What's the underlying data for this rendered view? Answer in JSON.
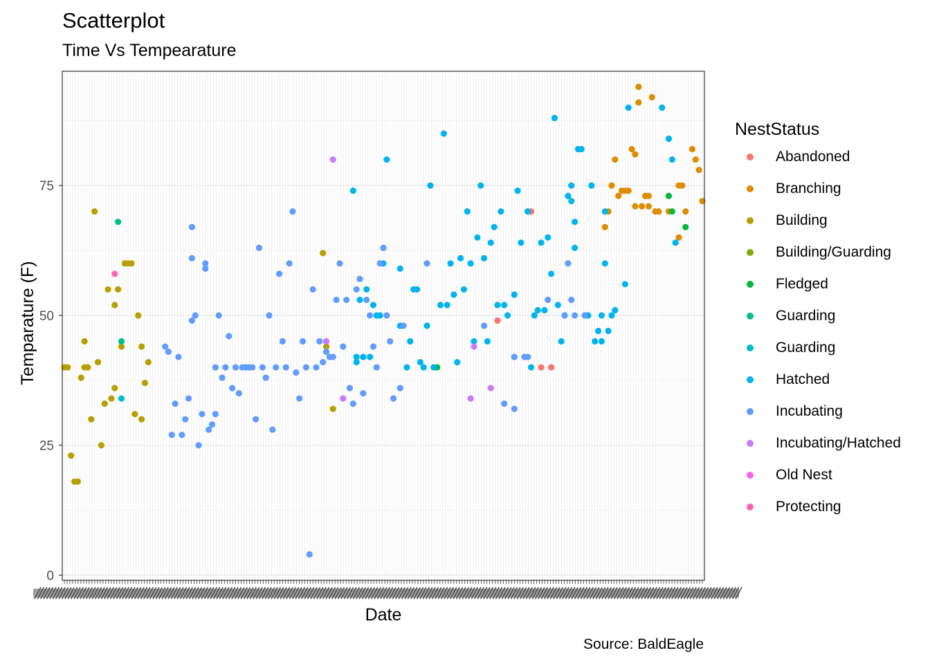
{
  "chart_data": {
    "type": "scatter",
    "title": "Scatterplot",
    "subtitle": "Time Vs Tempearature",
    "caption": "Source: BaldEagle",
    "xlabel": "Date",
    "ylabel": "Temparature (F)",
    "ylim": [
      -1,
      97
    ],
    "y_ticks": [
      0,
      25,
      50,
      75
    ],
    "grid": true,
    "legend": {
      "title": "NestStatus",
      "position": "right"
    },
    "series": [
      {
        "name": "Abandoned",
        "color": "#F8766D",
        "points": [
          [
            129,
            49
          ],
          [
            138,
            70
          ],
          [
            139,
            70
          ],
          [
            142,
            40
          ],
          [
            145,
            40
          ]
        ]
      },
      {
        "name": "Branching",
        "color": "#DE8C00",
        "points": [
          [
            161,
            67
          ],
          [
            162,
            70
          ],
          [
            163,
            75
          ],
          [
            164,
            80
          ],
          [
            165,
            73
          ],
          [
            166,
            74
          ],
          [
            167,
            74
          ],
          [
            168,
            74
          ],
          [
            169,
            82
          ],
          [
            170,
            81
          ],
          [
            170,
            71
          ],
          [
            171,
            94
          ],
          [
            171,
            91
          ],
          [
            172,
            71
          ],
          [
            173,
            73
          ],
          [
            174,
            73
          ],
          [
            174,
            71
          ],
          [
            175,
            92
          ],
          [
            176,
            70
          ],
          [
            177,
            70
          ],
          [
            180,
            70
          ],
          [
            183,
            65
          ],
          [
            183,
            75
          ],
          [
            184,
            75
          ],
          [
            185,
            70
          ],
          [
            187,
            82
          ],
          [
            188,
            80
          ],
          [
            189,
            78
          ],
          [
            190,
            72
          ]
        ]
      },
      {
        "name": "Building",
        "color": "#B79F00",
        "points": [
          [
            0,
            40
          ],
          [
            1,
            40
          ],
          [
            2,
            23
          ],
          [
            3,
            18
          ],
          [
            4,
            18
          ],
          [
            5,
            38
          ],
          [
            6,
            40
          ],
          [
            6,
            45
          ],
          [
            7,
            40
          ],
          [
            8,
            30
          ],
          [
            9,
            70
          ],
          [
            10,
            41
          ],
          [
            11,
            25
          ],
          [
            12,
            33
          ],
          [
            13,
            55
          ],
          [
            14,
            34
          ],
          [
            15,
            36
          ],
          [
            15,
            52
          ],
          [
            16,
            55
          ],
          [
            17,
            44
          ],
          [
            18,
            60
          ],
          [
            19,
            60
          ],
          [
            20,
            60
          ],
          [
            21,
            31
          ],
          [
            22,
            50
          ],
          [
            23,
            44
          ],
          [
            23,
            30
          ],
          [
            24,
            37
          ],
          [
            25,
            41
          ],
          [
            77,
            62
          ],
          [
            78,
            45
          ],
          [
            78,
            44
          ],
          [
            80,
            32
          ]
        ]
      },
      {
        "name": "Building/Guarding",
        "color": "#7CAE00",
        "points": []
      },
      {
        "name": "Fledged",
        "color": "#00BA38",
        "points": [
          [
            111,
            40
          ],
          [
            180,
            73
          ],
          [
            181,
            70
          ],
          [
            185,
            67
          ]
        ]
      },
      {
        "name": "Guarding",
        "color": "#00C08B",
        "points": [
          [
            16,
            68
          ],
          [
            17,
            45
          ]
        ]
      },
      {
        "name": "Guarding",
        "color": "#00BFC4",
        "points": [
          [
            17,
            34
          ]
        ]
      },
      {
        "name": "Hatched",
        "color": "#00B4F0",
        "points": [
          [
            86,
            74
          ],
          [
            87,
            42
          ],
          [
            87,
            41
          ],
          [
            88,
            53
          ],
          [
            89,
            42
          ],
          [
            90,
            55
          ],
          [
            91,
            42
          ],
          [
            92,
            52
          ],
          [
            93,
            50
          ],
          [
            94,
            50
          ],
          [
            95,
            63
          ],
          [
            95,
            60
          ],
          [
            96,
            80
          ],
          [
            100,
            59
          ],
          [
            100,
            48
          ],
          [
            102,
            40
          ],
          [
            103,
            45
          ],
          [
            104,
            55
          ],
          [
            105,
            55
          ],
          [
            106,
            41
          ],
          [
            107,
            40
          ],
          [
            108,
            48
          ],
          [
            109,
            75
          ],
          [
            110,
            40
          ],
          [
            112,
            52
          ],
          [
            113,
            85
          ],
          [
            114,
            52
          ],
          [
            115,
            60
          ],
          [
            116,
            54
          ],
          [
            117,
            41
          ],
          [
            118,
            61
          ],
          [
            119,
            55
          ],
          [
            120,
            70
          ],
          [
            121,
            60
          ],
          [
            122,
            45
          ],
          [
            123,
            65
          ],
          [
            124,
            75
          ],
          [
            125,
            61
          ],
          [
            126,
            45
          ],
          [
            127,
            64
          ],
          [
            128,
            67
          ],
          [
            129,
            52
          ],
          [
            130,
            70
          ],
          [
            131,
            52
          ],
          [
            132,
            50
          ],
          [
            134,
            42
          ],
          [
            134,
            54
          ],
          [
            135,
            74
          ],
          [
            136,
            64
          ],
          [
            138,
            70
          ],
          [
            139,
            40
          ],
          [
            140,
            50
          ],
          [
            141,
            51
          ],
          [
            142,
            64
          ],
          [
            143,
            51
          ],
          [
            144,
            65
          ],
          [
            145,
            58
          ],
          [
            146,
            88
          ],
          [
            147,
            52
          ],
          [
            148,
            45
          ],
          [
            149,
            50
          ],
          [
            150,
            73
          ],
          [
            151,
            72
          ],
          [
            151,
            75
          ],
          [
            152,
            63
          ],
          [
            152,
            68
          ],
          [
            153,
            82
          ],
          [
            154,
            82
          ],
          [
            155,
            50
          ],
          [
            156,
            50
          ],
          [
            157,
            75
          ],
          [
            158,
            45
          ],
          [
            159,
            47
          ],
          [
            160,
            50
          ],
          [
            160,
            45
          ],
          [
            161,
            70
          ],
          [
            161,
            60
          ],
          [
            162,
            47
          ],
          [
            163,
            50
          ],
          [
            164,
            51
          ],
          [
            167,
            56
          ],
          [
            168,
            90
          ],
          [
            178,
            90
          ],
          [
            180,
            84
          ],
          [
            181,
            80
          ],
          [
            182,
            64
          ]
        ]
      },
      {
        "name": "Incubating",
        "color": "#619CFF",
        "points": [
          [
            30,
            44
          ],
          [
            31,
            43
          ],
          [
            32,
            27
          ],
          [
            33,
            33
          ],
          [
            34,
            42
          ],
          [
            35,
            27
          ],
          [
            36,
            30
          ],
          [
            37,
            34
          ],
          [
            38,
            49
          ],
          [
            38,
            61
          ],
          [
            38,
            67
          ],
          [
            39,
            50
          ],
          [
            40,
            25
          ],
          [
            41,
            31
          ],
          [
            42,
            60
          ],
          [
            42,
            59
          ],
          [
            43,
            28
          ],
          [
            44,
            29
          ],
          [
            45,
            31
          ],
          [
            45,
            40
          ],
          [
            46,
            50
          ],
          [
            47,
            38
          ],
          [
            48,
            40
          ],
          [
            49,
            46
          ],
          [
            50,
            36
          ],
          [
            51,
            40
          ],
          [
            52,
            35
          ],
          [
            53,
            40
          ],
          [
            54,
            40
          ],
          [
            55,
            40
          ],
          [
            56,
            40
          ],
          [
            57,
            30
          ],
          [
            58,
            63
          ],
          [
            59,
            40
          ],
          [
            60,
            38
          ],
          [
            61,
            50
          ],
          [
            62,
            28
          ],
          [
            63,
            40
          ],
          [
            64,
            58
          ],
          [
            65,
            45
          ],
          [
            66,
            40
          ],
          [
            67,
            60
          ],
          [
            68,
            70
          ],
          [
            69,
            39
          ],
          [
            70,
            34
          ],
          [
            71,
            45
          ],
          [
            72,
            40
          ],
          [
            73,
            4
          ],
          [
            74,
            55
          ],
          [
            75,
            40
          ],
          [
            76,
            45
          ],
          [
            77,
            41
          ],
          [
            78,
            43
          ],
          [
            79,
            42
          ],
          [
            80,
            42
          ],
          [
            81,
            53
          ],
          [
            82,
            60
          ],
          [
            83,
            44
          ],
          [
            84,
            53
          ],
          [
            85,
            36
          ],
          [
            86,
            33
          ],
          [
            87,
            55
          ],
          [
            88,
            57
          ],
          [
            89,
            35
          ],
          [
            90,
            53
          ],
          [
            91,
            50
          ],
          [
            92,
            44
          ],
          [
            93,
            40
          ],
          [
            94,
            60
          ],
          [
            95,
            63
          ],
          [
            96,
            50
          ],
          [
            97,
            45
          ],
          [
            98,
            34
          ],
          [
            100,
            36
          ],
          [
            101,
            48
          ],
          [
            108,
            60
          ],
          [
            125,
            48
          ],
          [
            131,
            33
          ],
          [
            134,
            42
          ],
          [
            134,
            32
          ],
          [
            137,
            42
          ],
          [
            138,
            42
          ],
          [
            144,
            53
          ],
          [
            149,
            50
          ],
          [
            150,
            60
          ],
          [
            151,
            53
          ],
          [
            152,
            50
          ],
          [
            155,
            50
          ]
        ]
      },
      {
        "name": "Incubating/Hatched",
        "color": "#C77CFF",
        "points": [
          [
            80,
            80
          ],
          [
            78,
            45
          ],
          [
            83,
            34
          ],
          [
            121,
            34
          ],
          [
            122,
            44
          ],
          [
            127,
            36
          ]
        ]
      },
      {
        "name": "Old Nest",
        "color": "#F564E3",
        "points": []
      },
      {
        "name": "Protecting",
        "color": "#FF64B0",
        "points": [
          [
            15,
            58
          ]
        ]
      }
    ]
  }
}
